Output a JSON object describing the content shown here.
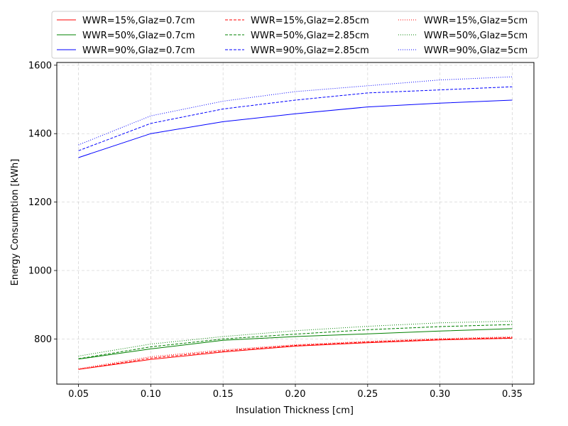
{
  "chart_data": {
    "type": "line",
    "title": "",
    "xlabel": "Insulation Thickness [cm]",
    "ylabel": "Energy Consumption [kWh]",
    "xlim": [
      0.035,
      0.365
    ],
    "ylim": [
      668,
      1608
    ],
    "x": [
      0.05,
      0.1,
      0.15,
      0.2,
      0.25,
      0.3,
      0.35
    ],
    "x_ticks": [
      0.05,
      0.1,
      0.15,
      0.2,
      0.25,
      0.3,
      0.35
    ],
    "x_tick_labels": [
      "0.05",
      "0.10",
      "0.15",
      "0.20",
      "0.25",
      "0.30",
      "0.35"
    ],
    "y_ticks": [
      800,
      1000,
      1200,
      1400,
      1600
    ],
    "y_tick_labels": [
      "800",
      "1000",
      "1200",
      "1400",
      "1600"
    ],
    "grid": true,
    "legend_position": "top-center (above plot), 3 columns",
    "series": [
      {
        "name": "WWR=15%,Glaz=0.7cm",
        "color": "#ff0000",
        "linestyle": "solid",
        "values": [
          711,
          740,
          762,
          779,
          789,
          797,
          802
        ]
      },
      {
        "name": "WWR=50%,Glaz=0.7cm",
        "color": "#008000",
        "linestyle": "solid",
        "values": [
          741,
          771,
          796,
          807,
          815,
          823,
          830
        ]
      },
      {
        "name": "WWR=90%,Glaz=0.7cm",
        "color": "#0000ff",
        "linestyle": "solid",
        "values": [
          1330,
          1400,
          1435,
          1458,
          1478,
          1489,
          1498
        ]
      },
      {
        "name": "WWR=15%,Glaz=2.85cm",
        "color": "#ff0000",
        "linestyle": "dashed",
        "values": [
          711,
          744,
          765,
          781,
          791,
          799,
          804
        ]
      },
      {
        "name": "WWR=50%,Glaz=2.85cm",
        "color": "#008000",
        "linestyle": "dashed",
        "values": [
          742,
          777,
          800,
          814,
          827,
          836,
          842
        ]
      },
      {
        "name": "WWR=90%,Glaz=2.85cm",
        "color": "#0000ff",
        "linestyle": "dashed",
        "values": [
          1350,
          1430,
          1472,
          1498,
          1519,
          1528,
          1537
        ]
      },
      {
        "name": "WWR=15%,Glaz=5cm",
        "color": "#ff0000",
        "linestyle": "dotted",
        "values": [
          713,
          748,
          768,
          783,
          793,
          801,
          806
        ]
      },
      {
        "name": "WWR=50%,Glaz=5cm",
        "color": "#008000",
        "linestyle": "dotted",
        "values": [
          750,
          785,
          807,
          824,
          837,
          847,
          852
        ]
      },
      {
        "name": "WWR=90%,Glaz=5cm",
        "color": "#0000ff",
        "linestyle": "dotted",
        "values": [
          1367,
          1452,
          1495,
          1523,
          1540,
          1557,
          1566
        ]
      }
    ]
  }
}
